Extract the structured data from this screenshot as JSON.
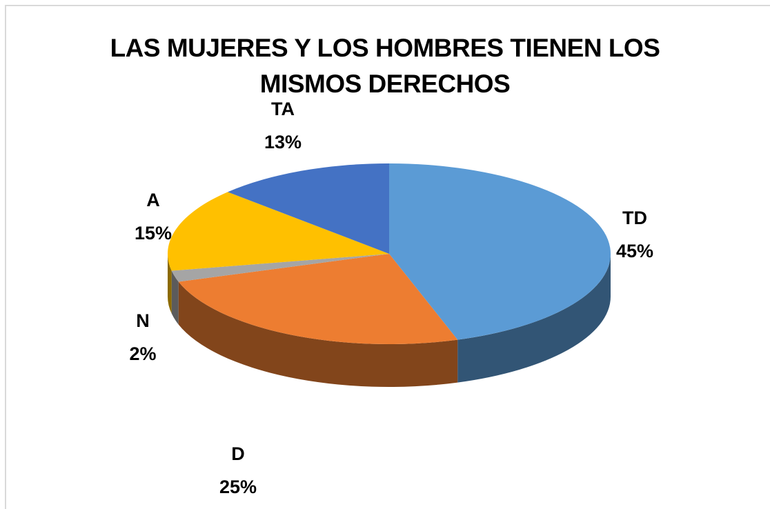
{
  "chart_data": {
    "type": "pie3d",
    "title": "LAS MUJERES Y LOS HOMBRES TIENEN LOS MISMOS DERECHOS",
    "categories": [
      "TD",
      "D",
      "N",
      "A",
      "TA"
    ],
    "values": [
      45,
      25,
      2,
      15,
      13
    ],
    "value_labels": [
      "45%",
      "25%",
      "2%",
      "15%",
      "13%"
    ],
    "colors": [
      "#5b9bd5",
      "#ed7d31",
      "#a5a5a5",
      "#ffc000",
      "#4472c4"
    ]
  }
}
